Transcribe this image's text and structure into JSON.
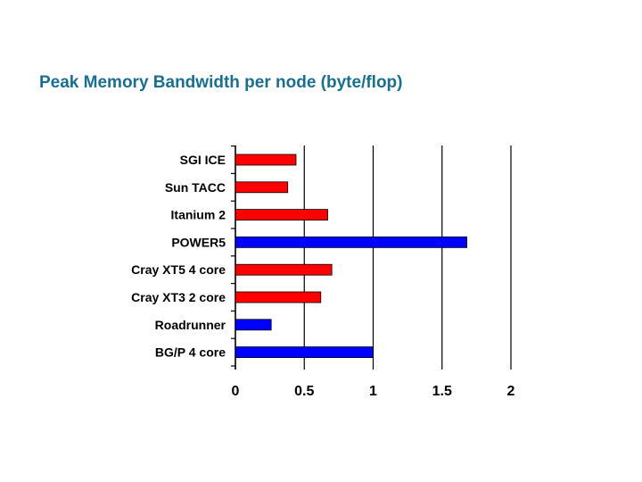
{
  "slide": {
    "title": "Peak Memory Bandwidth per node (byte/flop)"
  },
  "colors": {
    "red": "#ff0000",
    "blue": "#0000ff",
    "grid": "#000000"
  },
  "chart_data": {
    "type": "bar",
    "orientation": "horizontal",
    "title": "Peak Memory Bandwidth per node (byte/flop)",
    "categories": [
      "SGI ICE",
      "Sun TACC",
      "Itanium 2",
      "POWER5",
      "Cray XT5 4 core",
      "Cray XT3 2 core",
      "Roadrunner",
      "BG/P 4 core"
    ],
    "values": [
      0.44,
      0.38,
      0.67,
      1.68,
      0.7,
      0.62,
      0.26,
      1.0
    ],
    "bar_colors": [
      "red",
      "red",
      "red",
      "blue",
      "red",
      "red",
      "blue",
      "blue"
    ],
    "xlim": [
      0,
      2
    ],
    "xticks": [
      0,
      0.5,
      1,
      1.5,
      2
    ],
    "xtick_labels": [
      "0",
      "0.5",
      "1",
      "1.5",
      "2"
    ],
    "grid": "vertical-major",
    "legend": "none"
  }
}
